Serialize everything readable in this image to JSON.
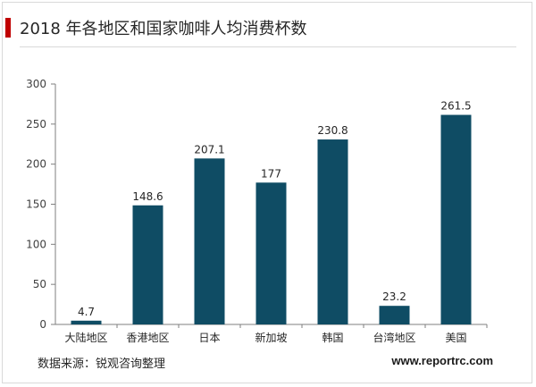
{
  "header": {
    "title": "2018 年各地区和国家咖啡人均消费杯数"
  },
  "footer": {
    "source": "数据来源：锐观咨询整理",
    "website": "www.reportrc.com"
  },
  "colors": {
    "bar": "#0f4c64",
    "accent": "#c00000",
    "axis": "#7f7f7f"
  },
  "chart_data": {
    "type": "bar",
    "categories": [
      "大陆地区",
      "香港地区",
      "日本",
      "新加坡",
      "韩国",
      "台湾地区",
      "美国"
    ],
    "values": [
      4.7,
      148.6,
      207.1,
      177,
      230.8,
      23.2,
      261.5
    ],
    "value_labels": [
      "4.7",
      "148.6",
      "207.1",
      "177",
      "230.8",
      "23.2",
      "261.5"
    ],
    "ylim": [
      0,
      300
    ],
    "yticks": [
      0,
      50,
      100,
      150,
      200,
      250,
      300
    ],
    "grid": false,
    "legend": "none"
  }
}
